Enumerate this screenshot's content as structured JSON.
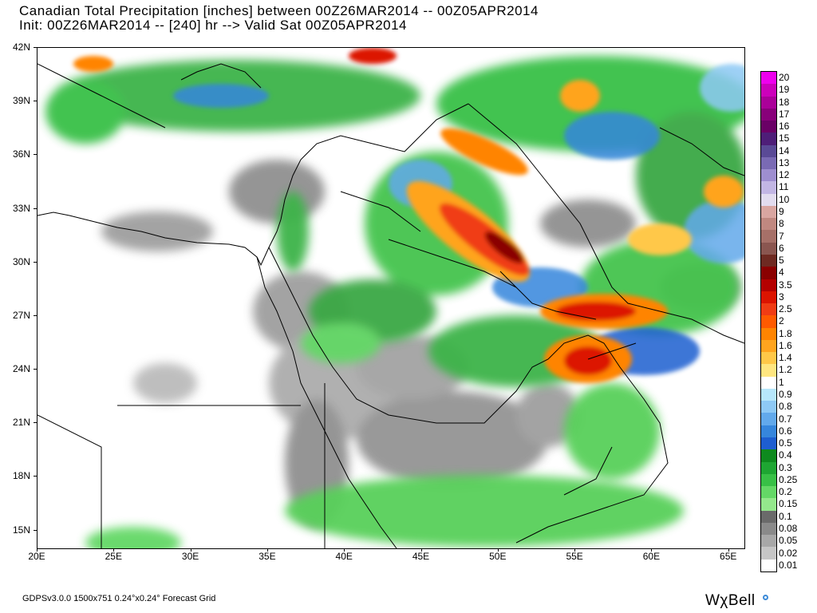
{
  "header": {
    "title_line1": "Canadian Total Precipitation [inches] between 00Z26MAR2014 -- 00Z05APR2014",
    "title_line2": "Init: 00Z26MAR2014 -- [240] hr --> Valid Sat 00Z05APR2014"
  },
  "axes": {
    "lat_labels": [
      "42N",
      "39N",
      "36N",
      "33N",
      "30N",
      "27N",
      "24N",
      "21N",
      "18N",
      "15N"
    ],
    "lon_labels": [
      "20E",
      "25E",
      "30E",
      "35E",
      "40E",
      "45E",
      "50E",
      "55E",
      "60E",
      "65E"
    ],
    "lat_range": [
      14,
      42
    ],
    "lon_range": [
      20,
      66
    ]
  },
  "legend": {
    "labels": [
      "20",
      "19",
      "18",
      "17",
      "16",
      "15",
      "14",
      "13",
      "12",
      "11",
      "10",
      "9",
      "8",
      "7",
      "6",
      "5",
      "4",
      "3.5",
      "3",
      "2.5",
      "2",
      "1.8",
      "1.6",
      "1.4",
      "1.2",
      "1",
      "0.9",
      "0.8",
      "0.7",
      "0.6",
      "0.5",
      "0.4",
      "0.3",
      "0.25",
      "0.2",
      "0.15",
      "0.1",
      "0.08",
      "0.05",
      "0.02",
      "0.01"
    ],
    "colors": [
      "#ee00ee",
      "#cc00bb",
      "#aa0099",
      "#88007a",
      "#6a0066",
      "#4e1e78",
      "#5a4a96",
      "#7a6ab4",
      "#9e8ed0",
      "#c2b6e4",
      "#e2dcef",
      "#d9a6a1",
      "#c08880",
      "#a67068",
      "#8a5650",
      "#6e2a22",
      "#8a0000",
      "#b40000",
      "#dc1400",
      "#f03c14",
      "#ff5a00",
      "#ff8400",
      "#ffa41e",
      "#ffc848",
      "#ffe680",
      "#ffffff",
      "#b7e7fb",
      "#8ec9f5",
      "#62a9eb",
      "#3686dc",
      "#1e5ed0",
      "#0e8a1e",
      "#1ea632",
      "#38c046",
      "#64d866",
      "#94e88c",
      "#6a6a6a",
      "#8a8a8a",
      "#a8a8a8",
      "#c6c6c6",
      "#ffffff"
    ]
  },
  "footer": {
    "model_info": "GDPSv3.0.0 1500x751 0.24°x0.24° Forecast Grid",
    "brand": "WχBell"
  },
  "colors": {
    "title_text": "#000000",
    "brand_dot": "#3d8bd8"
  }
}
